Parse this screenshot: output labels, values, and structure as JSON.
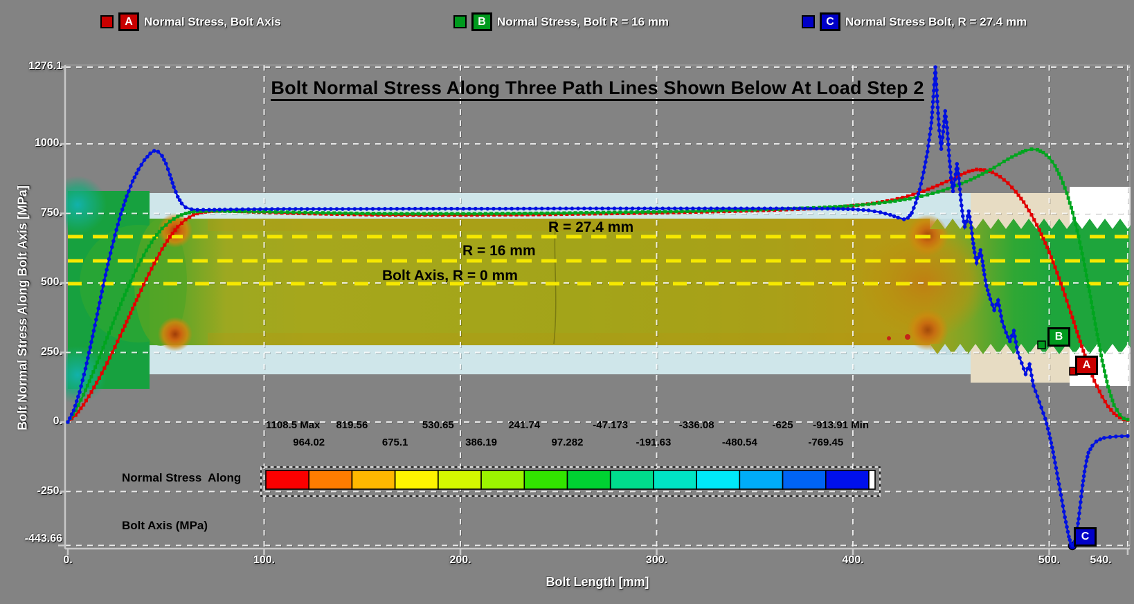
{
  "page": {
    "background": "#838383",
    "plot_frame_color": "#c8c8c8",
    "gridline_color": "#ffffff"
  },
  "title": "Bolt Normal Stress Along Three Path Lines Shown Below At Load Step 2",
  "legend": {
    "items": [
      {
        "id": "A",
        "label": "Normal Stress, Bolt Axis",
        "color": "#c80000"
      },
      {
        "id": "B",
        "label": "Normal Stress, Bolt R = 16 mm",
        "color": "#009a1e"
      },
      {
        "id": "C",
        "label": "Normal Stress Bolt, R = 27.4 mm",
        "color": "#0000c8"
      }
    ]
  },
  "path_line_labels": [
    {
      "text": "R = 27.4 mm"
    },
    {
      "text": "R = 16 mm"
    },
    {
      "text": "Bolt Axis, R = 0 mm"
    }
  ],
  "colorbar": {
    "caption_lines": [
      "Normal Stress  Along",
      "Bolt Axis (MPa)"
    ],
    "labels_top": [
      "1108.5 Max",
      "819.56",
      "530.65",
      "241.74",
      "-47.173",
      "-336.08",
      "-625",
      "-913.91 Min"
    ],
    "labels_bottom": [
      "964.02",
      "675.1",
      "386.19",
      "97.282",
      "-191.63",
      "-480.54",
      "-769.45"
    ],
    "segment_colors": [
      "#fb0000",
      "#ff7c00",
      "#ffb800",
      "#fff400",
      "#d4f800",
      "#9cf400",
      "#32e400",
      "#00d232",
      "#00dc8c",
      "#00e4c4",
      "#00e8f8",
      "#00acf8",
      "#0064f4",
      "#0010ec"
    ]
  },
  "chart_badges": [
    {
      "id": "A",
      "color": "#c80000"
    },
    {
      "id": "B",
      "color": "#009a1e"
    },
    {
      "id": "C",
      "color": "#0000c8"
    }
  ],
  "chart_data": {
    "type": "line",
    "title": "Bolt Normal Stress Along Three Path Lines Shown Below At Load Step 2",
    "grid": true,
    "legend_position": "top",
    "x_axis": {
      "title": "Bolt Length [mm]",
      "tick_labels": [
        "0.",
        "100.",
        "200.",
        "300.",
        "400.",
        "500.",
        "540."
      ],
      "tick_values": [
        0,
        100,
        200,
        300,
        400,
        500,
        540
      ],
      "range": [
        0,
        540
      ]
    },
    "y_axis": {
      "title": "Bolt Normal Stress Along Bolt Axis [MPa]",
      "tick_labels": [
        "1276.1",
        "1000.",
        "750.",
        "500.",
        "250.",
        "0.",
        "-250.",
        "-443.66"
      ],
      "tick_values": [
        1276.1,
        1000,
        750,
        500,
        250,
        0,
        -250,
        -443.66
      ],
      "range": [
        -443.66,
        1276.1
      ]
    },
    "series": [
      {
        "id": "A",
        "name": "Normal Stress, Bolt Axis",
        "color": "#e00000",
        "marker": "square",
        "points": [
          [
            0,
            0
          ],
          [
            4,
            25
          ],
          [
            8,
            62
          ],
          [
            12,
            108
          ],
          [
            16,
            158
          ],
          [
            20,
            212
          ],
          [
            24,
            270
          ],
          [
            28,
            330
          ],
          [
            32,
            392
          ],
          [
            36,
            454
          ],
          [
            40,
            514
          ],
          [
            44,
            570
          ],
          [
            48,
            622
          ],
          [
            52,
            666
          ],
          [
            56,
            702
          ],
          [
            60,
            728
          ],
          [
            64,
            745
          ],
          [
            68,
            754
          ],
          [
            72,
            757
          ],
          [
            76,
            759
          ],
          [
            80,
            759
          ],
          [
            86,
            758
          ],
          [
            92,
            756
          ],
          [
            100,
            754
          ],
          [
            112,
            751
          ],
          [
            126,
            749
          ],
          [
            140,
            747
          ],
          [
            155,
            745
          ],
          [
            170,
            744
          ],
          [
            185,
            744
          ],
          [
            200,
            744
          ],
          [
            220,
            745
          ],
          [
            240,
            746
          ],
          [
            260,
            748
          ],
          [
            280,
            750
          ],
          [
            300,
            752
          ],
          [
            320,
            755
          ],
          [
            340,
            758
          ],
          [
            360,
            762
          ],
          [
            375,
            766
          ],
          [
            388,
            771
          ],
          [
            400,
            778
          ],
          [
            410,
            786
          ],
          [
            420,
            798
          ],
          [
            428,
            812
          ],
          [
            436,
            830
          ],
          [
            443,
            850
          ],
          [
            450,
            872
          ],
          [
            455,
            889
          ],
          [
            459,
            901
          ],
          [
            463,
            908
          ],
          [
            467,
            906
          ],
          [
            471,
            898
          ],
          [
            475,
            882
          ],
          [
            479,
            859
          ],
          [
            483,
            828
          ],
          [
            487,
            791
          ],
          [
            491,
            745
          ],
          [
            495,
            691
          ],
          [
            499,
            628
          ],
          [
            503,
            557
          ],
          [
            507,
            478
          ],
          [
            511,
            394
          ],
          [
            515,
            307
          ],
          [
            519,
            222
          ],
          [
            523,
            148
          ],
          [
            527,
            91
          ],
          [
            530,
            56
          ],
          [
            533,
            31
          ],
          [
            536,
            16
          ],
          [
            538,
            9
          ],
          [
            540,
            7
          ]
        ]
      },
      {
        "id": "B",
        "name": "Normal Stress, Bolt R = 16 mm",
        "color": "#00a51e",
        "marker": "square",
        "points": [
          [
            0,
            0
          ],
          [
            4,
            42
          ],
          [
            8,
            98
          ],
          [
            12,
            163
          ],
          [
            16,
            232
          ],
          [
            20,
            303
          ],
          [
            24,
            373
          ],
          [
            28,
            441
          ],
          [
            32,
            506
          ],
          [
            36,
            565
          ],
          [
            40,
            617
          ],
          [
            44,
            661
          ],
          [
            48,
            696
          ],
          [
            52,
            721
          ],
          [
            56,
            739
          ],
          [
            60,
            750
          ],
          [
            64,
            756
          ],
          [
            68,
            758
          ],
          [
            72,
            759
          ],
          [
            80,
            758
          ],
          [
            90,
            757
          ],
          [
            100,
            756
          ],
          [
            115,
            754
          ],
          [
            130,
            752
          ],
          [
            150,
            750
          ],
          [
            170,
            749
          ],
          [
            190,
            749
          ],
          [
            210,
            749
          ],
          [
            230,
            750
          ],
          [
            250,
            751
          ],
          [
            270,
            753
          ],
          [
            290,
            755
          ],
          [
            310,
            757
          ],
          [
            330,
            760
          ],
          [
            350,
            763
          ],
          [
            368,
            767
          ],
          [
            383,
            771
          ],
          [
            396,
            776
          ],
          [
            408,
            783
          ],
          [
            419,
            792
          ],
          [
            429,
            803
          ],
          [
            438,
            817
          ],
          [
            446,
            833
          ],
          [
            453,
            851
          ],
          [
            460,
            871
          ],
          [
            466,
            892
          ],
          [
            472,
            915
          ],
          [
            477,
            937
          ],
          [
            481,
            953
          ],
          [
            485,
            967
          ],
          [
            488,
            976
          ],
          [
            491,
            981
          ],
          [
            494,
            979
          ],
          [
            497,
            969
          ],
          [
            500,
            951
          ],
          [
            503,
            921
          ],
          [
            506,
            878
          ],
          [
            509,
            823
          ],
          [
            512,
            753
          ],
          [
            515,
            667
          ],
          [
            518,
            565
          ],
          [
            521,
            451
          ],
          [
            524,
            333
          ],
          [
            527,
            221
          ],
          [
            530,
            127
          ],
          [
            533,
            61
          ],
          [
            536,
            26
          ],
          [
            538,
            13
          ],
          [
            540,
            9
          ]
        ]
      },
      {
        "id": "C",
        "name": "Normal Stress Bolt, R = 27.4 mm",
        "color": "#0010e0",
        "marker": "circle",
        "points": [
          [
            0,
            0
          ],
          [
            3,
            42
          ],
          [
            6,
            108
          ],
          [
            9,
            192
          ],
          [
            12,
            288
          ],
          [
            15,
            388
          ],
          [
            18,
            490
          ],
          [
            21,
            586
          ],
          [
            24,
            672
          ],
          [
            27,
            748
          ],
          [
            30,
            812
          ],
          [
            33,
            866
          ],
          [
            36,
            908
          ],
          [
            39,
            942
          ],
          [
            42,
            966
          ],
          [
            44,
            975
          ],
          [
            46,
            972
          ],
          [
            48,
            957
          ],
          [
            50,
            929
          ],
          [
            52,
            889
          ],
          [
            54,
            845
          ],
          [
            56,
            810
          ],
          [
            58,
            786
          ],
          [
            60,
            772
          ],
          [
            63,
            765
          ],
          [
            66,
            763
          ],
          [
            72,
            763
          ],
          [
            80,
            764
          ],
          [
            92,
            765
          ],
          [
            110,
            766
          ],
          [
            140,
            766
          ],
          [
            180,
            767
          ],
          [
            220,
            767
          ],
          [
            260,
            768
          ],
          [
            300,
            768
          ],
          [
            340,
            768
          ],
          [
            370,
            768
          ],
          [
            390,
            767
          ],
          [
            400,
            765
          ],
          [
            408,
            761
          ],
          [
            414,
            754
          ],
          [
            419,
            745
          ],
          [
            423,
            735
          ],
          [
            426,
            729
          ],
          [
            428,
            734
          ],
          [
            430,
            752
          ],
          [
            432,
            788
          ],
          [
            434,
            836
          ],
          [
            436,
            898
          ],
          [
            438,
            972
          ],
          [
            440,
            1076
          ],
          [
            441,
            1170
          ],
          [
            442,
            1276
          ],
          [
            443,
            1152
          ],
          [
            444,
            1048
          ],
          [
            445,
            982
          ],
          [
            446,
            1044
          ],
          [
            447,
            1118
          ],
          [
            448,
            1058
          ],
          [
            449,
            958
          ],
          [
            450,
            878
          ],
          [
            451,
            830
          ],
          [
            452,
            872
          ],
          [
            453,
            928
          ],
          [
            454,
            876
          ],
          [
            455,
            798
          ],
          [
            456,
            740
          ],
          [
            457,
            702
          ],
          [
            458,
            722
          ],
          [
            459,
            758
          ],
          [
            460,
            718
          ],
          [
            461,
            658
          ],
          [
            462,
            610
          ],
          [
            463,
            572
          ],
          [
            464,
            592
          ],
          [
            465,
            618
          ],
          [
            466,
            578
          ],
          [
            467,
            530
          ],
          [
            468,
            490
          ],
          [
            470,
            442
          ],
          [
            472,
            402
          ],
          [
            473,
            422
          ],
          [
            474,
            438
          ],
          [
            475,
            400
          ],
          [
            476,
            362
          ],
          [
            478,
            322
          ],
          [
            480,
            290
          ],
          [
            481,
            310
          ],
          [
            482,
            328
          ],
          [
            483,
            288
          ],
          [
            484,
            250
          ],
          [
            486,
            212
          ],
          [
            488,
            172
          ],
          [
            489,
            192
          ],
          [
            490,
            208
          ],
          [
            491,
            168
          ],
          [
            492,
            130
          ],
          [
            494,
            92
          ],
          [
            496,
            52
          ],
          [
            498,
            12
          ],
          [
            500,
            -42
          ],
          [
            502,
            -108
          ],
          [
            504,
            -184
          ],
          [
            506,
            -262
          ],
          [
            508,
            -342
          ],
          [
            510,
            -412
          ],
          [
            511,
            -436
          ],
          [
            512,
            -443.66
          ],
          [
            513,
            -430
          ],
          [
            514,
            -398
          ],
          [
            515,
            -348
          ],
          [
            516,
            -288
          ],
          [
            517,
            -228
          ],
          [
            518,
            -178
          ],
          [
            519,
            -140
          ],
          [
            520,
            -110
          ],
          [
            522,
            -85
          ],
          [
            524,
            -70
          ],
          [
            526,
            -62
          ],
          [
            528,
            -57
          ],
          [
            531,
            -54
          ],
          [
            534,
            -52
          ],
          [
            537,
            -51
          ],
          [
            540,
            -50
          ]
        ]
      }
    ]
  }
}
